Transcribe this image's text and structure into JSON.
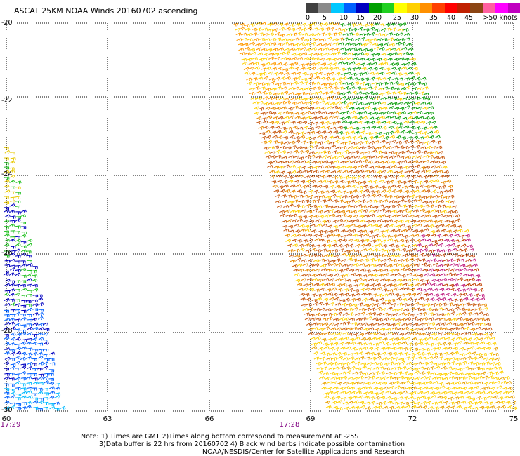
{
  "title": "ASCAT 25KM NOAA Winds 20160702 ascending",
  "colorbar": {
    "colors": [
      "#404040",
      "#8a8a8a",
      "#00c8ff",
      "#0060ff",
      "#0000c0",
      "#00a000",
      "#20d020",
      "#ffff00",
      "#ffd000",
      "#ff9000",
      "#ff4000",
      "#ff0000",
      "#c02000",
      "#8b4513",
      "#ff60a0",
      "#ff00ff",
      "#c000c0",
      "#8000c0",
      "#400080"
    ],
    "labels": [
      "0",
      "5",
      "10",
      "15",
      "20",
      "25",
      "30",
      "35",
      "40",
      "45",
      ">50 knots"
    ]
  },
  "yaxis": {
    "labels": [
      "-20",
      "-22",
      "-24",
      "-26",
      "-28",
      "-30"
    ]
  },
  "xaxis": {
    "labels": [
      "60",
      "63",
      "66",
      "69",
      "72",
      "75"
    ]
  },
  "times": [
    "17:29",
    "17:28"
  ],
  "notes": {
    "line1": "Note: 1) Times are GMT 2)Times along bottom correspond to measurement at -25S",
    "line2": "3)Data buffer is 22 hrs from 20160702 4) Black wind barbs indicate possible contamination",
    "line3": "NOAA/NESDIS/Center for Satellite Applications and Research"
  }
}
